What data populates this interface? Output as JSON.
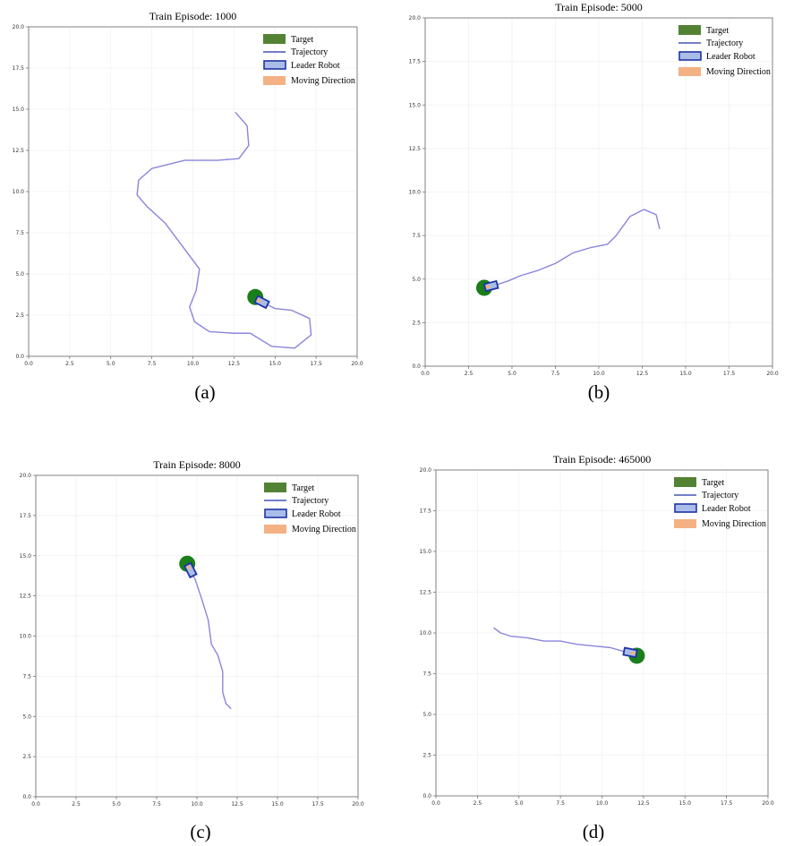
{
  "colors": {
    "target": "#548235",
    "target_circle": "#1a7f1a",
    "trajectory": "#8a85dc",
    "robot_fill": "#a9bde8",
    "robot_edge": "#1f33a6",
    "moving_direction": "#f4b183",
    "grid": "#f0f0f0",
    "axes": "#666666"
  },
  "legend": {
    "target": "Target",
    "trajectory": "Trajectory",
    "leader_robot": "Leader Robot",
    "moving_direction": "Moving Direction"
  },
  "chart_data": [
    {
      "type": "line",
      "caption": "(a)",
      "title": "Train Episode: 1000",
      "xlim": [
        0,
        20
      ],
      "ylim": [
        0,
        20
      ],
      "xticks": [
        "0.0",
        "2.5",
        "5.0",
        "7.5",
        "10.0",
        "12.5",
        "15.0",
        "17.5",
        "20.0"
      ],
      "yticks": [
        "0.0",
        "2.5",
        "5.0",
        "7.5",
        "10.0",
        "12.5",
        "15.0",
        "17.5",
        "20.0"
      ],
      "grid": true,
      "legend_position": "top-right",
      "target": [
        13.8,
        3.6
      ],
      "robot": [
        14.2,
        3.3
      ],
      "trajectory": {
        "x": [
          12.6,
          13.3,
          13.4,
          12.8,
          11.5,
          9.5,
          7.5,
          6.7,
          6.6,
          7.2,
          8.3,
          9.5,
          10.4,
          10.2,
          9.8,
          10.1,
          11.0,
          12.5,
          13.5,
          14.8,
          16.2,
          17.2,
          17.1,
          16.0,
          15.0,
          14.2
        ],
        "y": [
          14.8,
          14.0,
          12.8,
          12.0,
          11.9,
          11.9,
          11.4,
          10.7,
          9.8,
          9.1,
          8.1,
          6.5,
          5.3,
          4.0,
          3.0,
          2.1,
          1.5,
          1.4,
          1.4,
          0.6,
          0.5,
          1.3,
          2.3,
          2.8,
          2.9,
          3.3
        ]
      }
    },
    {
      "type": "line",
      "caption": "(b)",
      "title": "Train Episode: 5000",
      "xlim": [
        0,
        20
      ],
      "ylim": [
        0,
        20
      ],
      "xticks": [
        "0.0",
        "2.5",
        "5.0",
        "7.5",
        "10.0",
        "12.5",
        "15.0",
        "17.5",
        "20.0"
      ],
      "yticks": [
        "0.0",
        "2.5",
        "5.0",
        "7.5",
        "10.0",
        "12.5",
        "15.0",
        "17.5",
        "20.0"
      ],
      "grid": true,
      "legend_position": "top-right",
      "target": [
        3.4,
        4.5
      ],
      "robot": [
        3.8,
        4.6
      ],
      "trajectory": {
        "x": [
          13.5,
          13.3,
          12.6,
          11.8,
          11.0,
          10.5,
          9.5,
          8.5,
          7.5,
          6.5,
          5.5,
          4.8,
          4.2,
          3.8
        ],
        "y": [
          7.9,
          8.7,
          9.0,
          8.6,
          7.5,
          7.0,
          6.8,
          6.5,
          5.9,
          5.5,
          5.2,
          4.9,
          4.7,
          4.6
        ]
      }
    },
    {
      "type": "line",
      "caption": "(c)",
      "title": "Train Episode: 8000",
      "xlim": [
        0,
        20
      ],
      "ylim": [
        0,
        20
      ],
      "xticks": [
        "0.0",
        "2.5",
        "5.0",
        "7.5",
        "10.0",
        "12.5",
        "15.0",
        "17.5",
        "20.0"
      ],
      "yticks": [
        "0.0",
        "2.5",
        "5.0",
        "7.5",
        "10.0",
        "12.5",
        "15.0",
        "17.5",
        "20.0"
      ],
      "grid": true,
      "legend_position": "top-right",
      "target": [
        9.4,
        14.5
      ],
      "robot": [
        9.6,
        14.1
      ],
      "trajectory": {
        "x": [
          12.1,
          11.8,
          11.6,
          11.6,
          11.3,
          10.9,
          10.7,
          10.3,
          9.9,
          9.6
        ],
        "y": [
          5.5,
          5.8,
          6.5,
          7.8,
          8.8,
          9.5,
          11.0,
          12.3,
          13.5,
          14.1
        ]
      }
    },
    {
      "type": "line",
      "caption": "(d)",
      "title": "Train Episode: 465000",
      "xlim": [
        0,
        20
      ],
      "ylim": [
        0,
        20
      ],
      "xticks": [
        "0.0",
        "2.5",
        "5.0",
        "7.5",
        "10.0",
        "12.5",
        "15.0",
        "17.5",
        "20.0"
      ],
      "yticks": [
        "0.0",
        "2.5",
        "5.0",
        "7.5",
        "10.0",
        "12.5",
        "15.0",
        "17.5",
        "20.0"
      ],
      "grid": true,
      "legend_position": "top-right",
      "target": [
        12.1,
        8.6
      ],
      "robot": [
        11.7,
        8.8
      ],
      "trajectory": {
        "x": [
          3.5,
          3.9,
          4.5,
          5.5,
          6.5,
          7.5,
          8.5,
          9.5,
          10.5,
          11.2,
          11.7
        ],
        "y": [
          10.3,
          10.0,
          9.8,
          9.7,
          9.5,
          9.5,
          9.3,
          9.2,
          9.1,
          8.9,
          8.8
        ]
      }
    }
  ]
}
